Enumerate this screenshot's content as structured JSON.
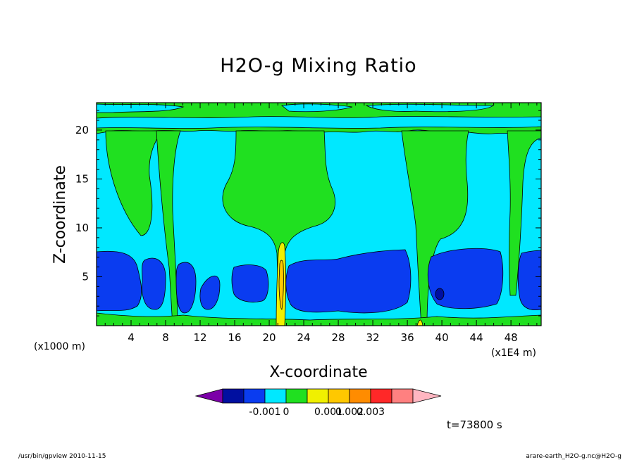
{
  "chart_data": {
    "type": "heatmap",
    "title": "H2O-g Mixing Ratio",
    "xlabel": "X-coordinate",
    "ylabel": "Z-coordinate",
    "x_unit_note": "(x1E4 m)",
    "y_unit_note": "(x1000 m)",
    "xlim": [
      0,
      51.5
    ],
    "ylim": [
      0,
      22.8
    ],
    "x_ticks": [
      4,
      8,
      12,
      16,
      20,
      24,
      28,
      32,
      36,
      40,
      44,
      48
    ],
    "y_ticks": [
      5,
      10,
      15,
      20
    ],
    "x_tick_labels": [
      "4",
      "8",
      "12",
      "16",
      "20",
      "24",
      "28",
      "32",
      "36",
      "40",
      "44",
      "48"
    ],
    "y_tick_labels": [
      "5",
      "10",
      "15",
      "20"
    ],
    "colorbar": {
      "colors": [
        "#7b00a8",
        "#000fa0",
        "#0a3cf0",
        "#00e8ff",
        "#20e020",
        "#f0f000",
        "#ffc800",
        "#ff8c00",
        "#ff2828",
        "#ff8080",
        "#ffb6c1"
      ],
      "tick_labels": [
        "-0.001",
        "0",
        "0.001",
        "0.002",
        "0.003"
      ]
    },
    "time_label": "t=73800 s"
  },
  "footer": {
    "left": "/usr/bin/gpview   2010-11-15",
    "right": "arare-earth_H2O-g.nc@H2O-g"
  }
}
